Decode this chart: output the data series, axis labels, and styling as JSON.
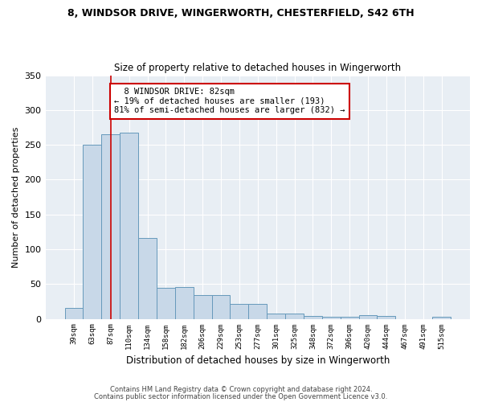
{
  "title1": "8, WINDSOR DRIVE, WINGERWORTH, CHESTERFIELD, S42 6TH",
  "title2": "Size of property relative to detached houses in Wingerworth",
  "xlabel": "Distribution of detached houses by size in Wingerworth",
  "ylabel": "Number of detached properties",
  "bar_labels": [
    "39sqm",
    "63sqm",
    "87sqm",
    "110sqm",
    "134sqm",
    "158sqm",
    "182sqm",
    "206sqm",
    "229sqm",
    "253sqm",
    "277sqm",
    "301sqm",
    "325sqm",
    "348sqm",
    "372sqm",
    "396sqm",
    "420sqm",
    "444sqm",
    "467sqm",
    "491sqm",
    "515sqm"
  ],
  "bar_values": [
    16,
    250,
    265,
    268,
    116,
    45,
    46,
    34,
    34,
    22,
    22,
    8,
    8,
    4,
    3,
    3,
    5,
    4,
    0,
    0,
    3
  ],
  "bar_color": "#c8d8e8",
  "bar_edge_color": "#6699bb",
  "vline_x": 2,
  "vline_color": "#cc0000",
  "annotation_text": "  8 WINDSOR DRIVE: 82sqm\n← 19% of detached houses are smaller (193)\n81% of semi-detached houses are larger (832) →",
  "annotation_box_color": "#ffffff",
  "annotation_box_edge": "#cc0000",
  "ylim": [
    0,
    350
  ],
  "yticks": [
    0,
    50,
    100,
    150,
    200,
    250,
    300,
    350
  ],
  "plot_bg_color": "#e8eef4",
  "footer1": "Contains HM Land Registry data © Crown copyright and database right 2024.",
  "footer2": "Contains public sector information licensed under the Open Government Licence v3.0."
}
